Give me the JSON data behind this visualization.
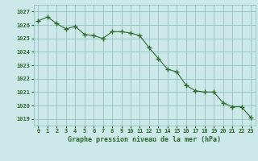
{
  "hours": [
    0,
    1,
    2,
    3,
    4,
    5,
    6,
    7,
    8,
    9,
    10,
    11,
    12,
    13,
    14,
    15,
    16,
    17,
    18,
    19,
    20,
    21,
    22,
    23
  ],
  "pressure": [
    1026.3,
    1026.6,
    1026.1,
    1025.7,
    1025.9,
    1025.3,
    1025.2,
    1025.0,
    1025.5,
    1025.5,
    1025.4,
    1025.2,
    1024.3,
    1023.5,
    1022.7,
    1022.5,
    1021.5,
    1021.1,
    1021.0,
    1021.0,
    1020.2,
    1019.9,
    1019.9,
    1019.1
  ],
  "line_color": "#2e6b2e",
  "marker_color": "#2e6b2e",
  "bg_color": "#cce8e8",
  "grid_color": "#88bbbb",
  "axis_label_color": "#2e6b2e",
  "tick_label_color": "#2e6b2e",
  "xlabel": "Graphe pression niveau de la mer (hPa)",
  "ylim_min": 1018.5,
  "ylim_max": 1027.5,
  "yticks": [
    1019,
    1020,
    1021,
    1022,
    1023,
    1024,
    1025,
    1026,
    1027
  ]
}
